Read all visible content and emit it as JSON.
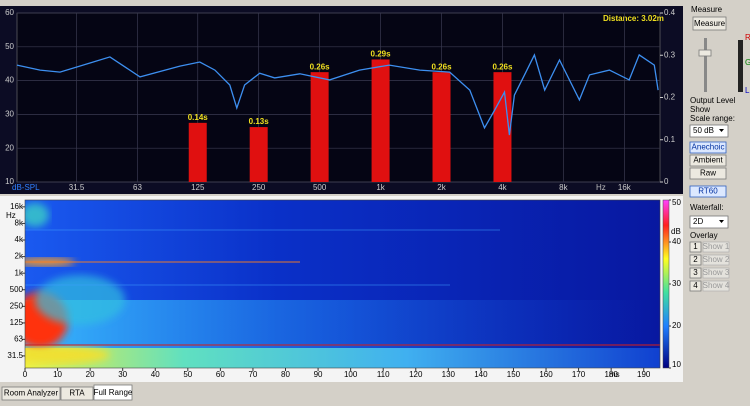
{
  "chart_data": [
    {
      "type": "combo",
      "ylabel": "dB-SPL",
      "xlabel": "Hz",
      "annotation": "Distance: 3.02m",
      "xscale": "log",
      "xlim": [
        16,
        24000
      ],
      "xticks": [
        31.5,
        63,
        125,
        250,
        500,
        {
          "value": 1000,
          "label": "1k"
        },
        {
          "value": 2000,
          "label": "2k"
        },
        {
          "value": 4000,
          "label": "4k"
        },
        {
          "value": 8000,
          "label": "8k"
        },
        {
          "value": 16000,
          "label": "16k"
        }
      ],
      "ylim": [
        10,
        60
      ],
      "yticks": [
        10,
        20,
        30,
        40,
        50,
        60
      ],
      "y2lim": [
        0,
        0.4
      ],
      "y2ticks": [
        0,
        0.1,
        0.2,
        0.3,
        0.4
      ],
      "grid": true,
      "series": [
        {
          "type": "line",
          "color": "#3d8ff0",
          "x": [
            16,
            20.8,
            26.1,
            36.7,
            46,
            64.8,
            102,
            128,
            152,
            180,
            195,
            213,
            253,
            300,
            399,
            560,
            787,
            1105,
            1562,
            2195,
            2760,
            3260,
            3660,
            4096,
            4330,
            4580,
            5140,
            5750,
            6470,
            7650,
            9600,
            10760,
            13500,
            16900,
            18950,
            22500,
            23500
          ],
          "values": [
            44.6,
            43.1,
            42.5,
            45.2,
            47.0,
            41.1,
            44.3,
            45.5,
            43.1,
            38.7,
            31.9,
            38.7,
            42.2,
            40.8,
            42.0,
            40.2,
            43.1,
            44.6,
            43.1,
            42.5,
            37.2,
            26.0,
            31.3,
            36.6,
            23.9,
            35.7,
            41.7,
            47.6,
            37.2,
            46.1,
            34.3,
            41.7,
            43.1,
            40.2,
            47.6,
            44.6,
            37.2
          ]
        },
        {
          "type": "bar",
          "axis": "y2",
          "color": "#e01010",
          "x": [
            125,
            250,
            500,
            1000,
            2000,
            4000
          ],
          "values": [
            0.14,
            0.13,
            0.26,
            0.29,
            0.26,
            0.26
          ],
          "value_labels": [
            "0.14s",
            "0.13s",
            "0.26s",
            "0.29s",
            "0.26s",
            "0.26s"
          ]
        }
      ]
    },
    {
      "type": "heatmap",
      "ylabel": "Hz",
      "xlabel": "ms",
      "xlim": [
        0,
        195
      ],
      "xticks": [
        0,
        10,
        20,
        30,
        40,
        50,
        60,
        70,
        80,
        90,
        100,
        110,
        120,
        130,
        140,
        150,
        160,
        170,
        180,
        190
      ],
      "yscale": "log",
      "ylim": [
        19,
        21300
      ],
      "yticks": [
        {
          "value": 16000,
          "label": "16k"
        },
        {
          "value": 8000,
          "label": "8k"
        },
        {
          "value": 4000,
          "label": "4k"
        },
        {
          "value": 2000,
          "label": "2k"
        },
        {
          "value": 1000,
          "label": "1k"
        },
        500,
        250,
        125,
        63,
        31.5
      ],
      "colorbar": {
        "label": "dB",
        "lim": [
          10,
          50
        ],
        "ticks": [
          10,
          20,
          30,
          40,
          50
        ]
      }
    }
  ],
  "panel": {
    "title": "Measure",
    "measure_button": "Measure",
    "meter_labels": [
      "R",
      "G",
      "L"
    ],
    "output_level": "Output Level",
    "show": "Show",
    "scale_range": "Scale range:",
    "scale_value": "50 dB",
    "buttons": [
      "Anechoic",
      "Ambient",
      "Raw"
    ],
    "rt60": "RT60",
    "waterfall": "Waterfall:",
    "waterfall_value": "2D",
    "overlay": "Overlay",
    "overlays": [
      {
        "num": "1",
        "label": "Show 1"
      },
      {
        "num": "2",
        "label": "Show 2"
      },
      {
        "num": "3",
        "label": "Show 3"
      },
      {
        "num": "4",
        "label": "Show 4"
      }
    ]
  },
  "tabs": [
    "Room Analyzer",
    "RTA",
    "Full Range"
  ]
}
